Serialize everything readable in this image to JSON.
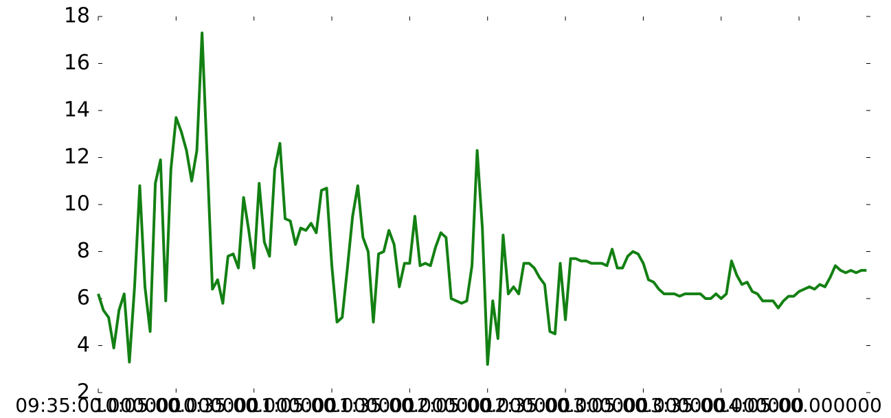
{
  "chart_data": {
    "type": "line",
    "x": [
      575,
      577,
      579,
      581,
      583,
      585,
      587,
      589,
      591,
      593,
      595,
      597,
      599,
      601,
      603,
      605,
      607,
      609,
      611,
      613,
      615,
      617,
      619,
      621,
      623,
      625,
      627,
      629,
      631,
      633,
      635,
      637,
      639,
      641,
      643,
      645,
      647,
      649,
      651,
      653,
      655,
      657,
      659,
      661,
      663,
      665,
      667,
      669,
      671,
      673,
      675,
      677,
      679,
      681,
      683,
      685,
      687,
      689,
      691,
      693,
      695,
      697,
      699,
      701,
      703,
      705,
      707,
      709,
      711,
      713,
      715,
      717,
      719,
      721,
      723,
      725,
      727,
      729,
      731,
      733,
      735,
      737,
      739,
      741,
      743,
      745,
      747,
      749,
      751,
      753,
      755,
      757,
      759,
      761,
      763,
      765,
      767,
      769,
      771,
      773,
      775,
      777,
      779,
      781,
      783,
      785,
      787,
      789,
      791,
      793,
      795,
      797,
      799,
      801,
      803,
      805,
      807,
      809,
      811,
      813,
      815,
      817,
      819,
      821,
      823,
      825,
      827,
      829,
      831,
      833,
      835,
      837,
      839,
      841,
      843,
      845,
      847,
      849,
      851,
      853,
      855,
      857,
      859,
      861,
      863,
      865,
      867,
      869,
      871
    ],
    "series": [
      {
        "color": "#138013",
        "values": [
          6.2,
          5.5,
          5.2,
          3.9,
          5.5,
          6.2,
          3.3,
          6.5,
          10.8,
          6.5,
          4.6,
          10.9,
          11.9,
          5.9,
          11.5,
          13.7,
          13.1,
          12.3,
          11.0,
          12.3,
          17.3,
          11.9,
          6.4,
          6.8,
          5.8,
          7.8,
          7.9,
          7.3,
          10.3,
          8.9,
          7.3,
          10.9,
          8.4,
          7.8,
          11.5,
          12.6,
          9.4,
          9.3,
          8.3,
          9.0,
          8.9,
          9.2,
          8.8,
          10.6,
          10.7,
          7.4,
          5.0,
          5.2,
          7.3,
          9.5,
          10.8,
          8.6,
          8.0,
          5.0,
          7.9,
          8.0,
          8.9,
          8.3,
          6.5,
          7.5,
          7.5,
          9.5,
          7.4,
          7.5,
          7.4,
          8.2,
          8.8,
          8.6,
          6.0,
          5.9,
          5.8,
          5.9,
          7.4,
          12.3,
          9.0,
          3.2,
          5.9,
          4.3,
          8.7,
          6.2,
          6.5,
          6.2,
          7.5,
          7.5,
          7.3,
          6.9,
          6.6,
          4.6,
          4.5,
          7.5,
          5.1,
          7.7,
          7.7,
          7.6,
          7.6,
          7.5,
          7.5,
          7.5,
          7.4,
          8.1,
          7.3,
          7.3,
          7.8,
          8.0,
          7.9,
          7.5,
          6.8,
          6.7,
          6.4,
          6.2,
          6.2,
          6.2,
          6.1,
          6.2,
          6.2,
          6.2,
          6.2,
          6.0,
          6.0,
          6.2,
          6.0,
          6.2,
          7.6,
          7.0,
          6.6,
          6.7,
          6.3,
          6.2,
          5.9,
          5.9,
          5.9,
          5.6,
          5.9,
          6.1,
          6.1,
          6.3,
          6.4,
          6.5,
          6.4,
          6.6,
          6.5,
          6.9,
          7.4,
          7.2,
          7.1,
          7.2,
          7.1,
          7.2,
          7.2
        ]
      }
    ],
    "xlim": [
      575,
      872.5
    ],
    "xticks": [
      {
        "value": 575,
        "label": "09:35:00.000000"
      },
      {
        "value": 605,
        "label": "10:05:00.000000"
      },
      {
        "value": 635,
        "label": "10:35:00.000000"
      },
      {
        "value": 665,
        "label": "11:05:00.000000"
      },
      {
        "value": 695,
        "label": "11:35:00.000000"
      },
      {
        "value": 725,
        "label": "12:05:00.000000"
      },
      {
        "value": 755,
        "label": "12:35:00.000000"
      },
      {
        "value": 785,
        "label": "13:05:00.000000"
      },
      {
        "value": 815,
        "label": "13:35:00.000000"
      },
      {
        "value": 845,
        "label": "14:05:00.000000"
      }
    ],
    "ylim": [
      2,
      18
    ],
    "yticks": [
      2,
      4,
      6,
      8,
      10,
      12,
      14,
      16,
      18
    ]
  }
}
